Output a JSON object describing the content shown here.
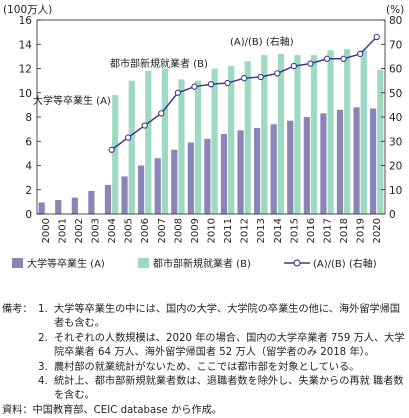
{
  "chart_data": {
    "type": "bar",
    "left_unit": "(100万人)",
    "right_unit": "(%)",
    "x": [
      "2000",
      "2001",
      "2002",
      "2003",
      "2004",
      "2005",
      "2006",
      "2007",
      "2008",
      "2009",
      "2010",
      "2011",
      "2012",
      "2013",
      "2014",
      "2015",
      "2016",
      "2017",
      "2018",
      "2019",
      "2020"
    ],
    "left_ylim": [
      0,
      16
    ],
    "left_ticks": [
      "0",
      "2",
      "4",
      "6",
      "8",
      "10",
      "12",
      "14",
      "16"
    ],
    "right_ylim": [
      0,
      80
    ],
    "right_ticks": [
      "0",
      "10",
      "20",
      "30",
      "40",
      "50",
      "60",
      "70",
      "80"
    ],
    "series": [
      {
        "name": "大学等卒業生 (A)",
        "axis": "left",
        "kind": "bar",
        "color": "#8a85b8",
        "values": [
          0.95,
          1.15,
          1.35,
          1.9,
          2.4,
          3.1,
          4.0,
          4.6,
          5.3,
          5.9,
          6.2,
          6.6,
          6.9,
          7.1,
          7.4,
          7.7,
          8.0,
          8.3,
          8.6,
          8.8,
          8.7
        ]
      },
      {
        "name": "都市部新規就業者 (B)",
        "axis": "left",
        "kind": "bar",
        "color": "#9ed9c2",
        "values": [
          null,
          null,
          null,
          null,
          9.8,
          11.0,
          11.8,
          12.0,
          11.1,
          11.0,
          12.0,
          12.2,
          12.6,
          13.1,
          13.2,
          13.1,
          13.1,
          13.5,
          13.6,
          13.5,
          11.9
        ]
      },
      {
        "name": "(A)/(B)(右軸)",
        "axis": "right",
        "kind": "line",
        "color": "#3f3a8c",
        "values": [
          null,
          null,
          null,
          null,
          26.5,
          31.5,
          36.5,
          41.5,
          50.0,
          52.5,
          53.5,
          54.0,
          56.0,
          56.5,
          58.0,
          61.0,
          62.0,
          64.0,
          64.0,
          66.0,
          73.0
        ]
      }
    ],
    "annotations": [
      "(A)/(B) (右軸)",
      "都市部新規就業者 (B)",
      "大学等卒業生 (A)"
    ],
    "legend": {
      "position": "bottom",
      "items": [
        "大学等卒業生 (A)",
        "都市部新規就業者 (B)",
        "(A)/(B) (右軸)"
      ]
    },
    "grid": false
  },
  "notes": {
    "label": "備考：",
    "items": [
      {
        "num": "1.",
        "text": "大学等卒業生の中には、国内の大学、大学院の卒業生の他に、海外留学帰国者も含む。"
      },
      {
        "num": "2.",
        "text": "それぞれの人数規模は、2020 年の場合、国内の大学卒業者 759 万人、大学院卒業者 64 万人、海外留学帰国者 52 万人（留学者のみ 2018 年）。"
      },
      {
        "num": "3.",
        "text": "農村部の就業統計がないため、ここでは都市部を対象としている。"
      },
      {
        "num": "4.",
        "text": "統計上、都市部新規就業者数は、退職者数を除外し、失業からの再就 職者数を含む。"
      }
    ],
    "source": "資料：中国教育部、CEIC database から作成。"
  }
}
